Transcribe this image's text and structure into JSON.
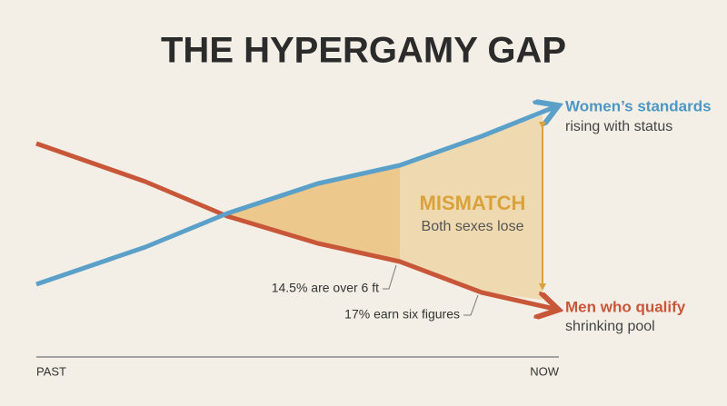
{
  "title": "THE HYPERGAMY GAP",
  "women": {
    "label": "Women’s standards",
    "sublabel": "rising with status"
  },
  "men": {
    "label": "Men who qualify",
    "sublabel": "shrinking pool"
  },
  "gap": {
    "label": "MISMATCH",
    "sublabel": "Both sexes lose"
  },
  "annotations": [
    "14.5% are over 6 ft",
    "17% earn six figures"
  ],
  "axis": {
    "start": "PAST",
    "end": "NOW"
  }
}
